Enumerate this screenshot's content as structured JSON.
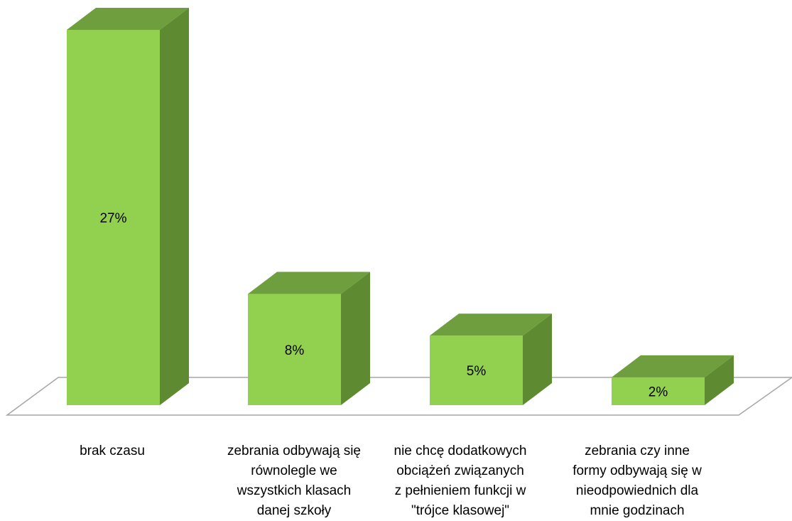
{
  "chart_data": {
    "type": "bar",
    "style": "3d-column",
    "categories": [
      [
        "brak czasu"
      ],
      [
        "zebrania odbywają się",
        "równolegle we",
        "wszystkich klasach",
        "danej szkoły"
      ],
      [
        "nie chcę dodatkowych",
        "obciążeń związanych",
        "z pełnieniem funkcji w",
        "\"trójce klasowej\""
      ],
      [
        "zebrania czy inne",
        "formy odbywają się w",
        "nieodpowiednich dla",
        "mnie  godzinach"
      ]
    ],
    "values": [
      27,
      8,
      5,
      2
    ],
    "data_labels": [
      "27%",
      "8%",
      "5%",
      "2%"
    ],
    "unit": "%",
    "title": "",
    "xlabel": "",
    "ylabel": "",
    "ylim": [
      0,
      27
    ],
    "grid": false,
    "legend": "none",
    "colors": {
      "bar_front": "#92d050",
      "bar_side": "#5e8a31",
      "bar_top": "#6e9e3d",
      "floor_stroke": "#a6a6a6",
      "label_text": "#000000"
    }
  }
}
